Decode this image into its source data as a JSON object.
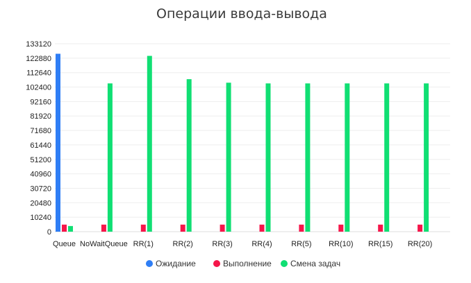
{
  "chart_data": {
    "type": "bar",
    "title": "Операции ввода-вывода",
    "xlabel": "",
    "ylabel": "",
    "categories": [
      "Queue",
      "NoWaitQueue",
      "RR(1)",
      "RR(2)",
      "RR(3)",
      "RR(4)",
      "RR(5)",
      "RR(10)",
      "RR(15)",
      "RR(20)"
    ],
    "y_ticks": [
      "0",
      "10240",
      "20480",
      "30720",
      "40960",
      "51200",
      "61440",
      "71680",
      "81920",
      "92160",
      "102400",
      "112640",
      "122880",
      "133120"
    ],
    "ylim": [
      0,
      133120
    ],
    "grid": true,
    "legend_position": "bottom",
    "series": [
      {
        "name": "Ожидание",
        "color": "#2f7ef5",
        "values": [
          126000,
          0,
          0,
          0,
          0,
          0,
          0,
          0,
          0,
          0
        ]
      },
      {
        "name": "Выполнение",
        "color": "#f5164a",
        "values": [
          5000,
          5000,
          5000,
          5000,
          5000,
          5000,
          5000,
          5000,
          5000,
          5000
        ]
      },
      {
        "name": "Смена задач",
        "color": "#10df73",
        "values": [
          4000,
          105000,
          124500,
          108000,
          105500,
          105000,
          105000,
          105000,
          105000,
          105000
        ]
      }
    ]
  }
}
